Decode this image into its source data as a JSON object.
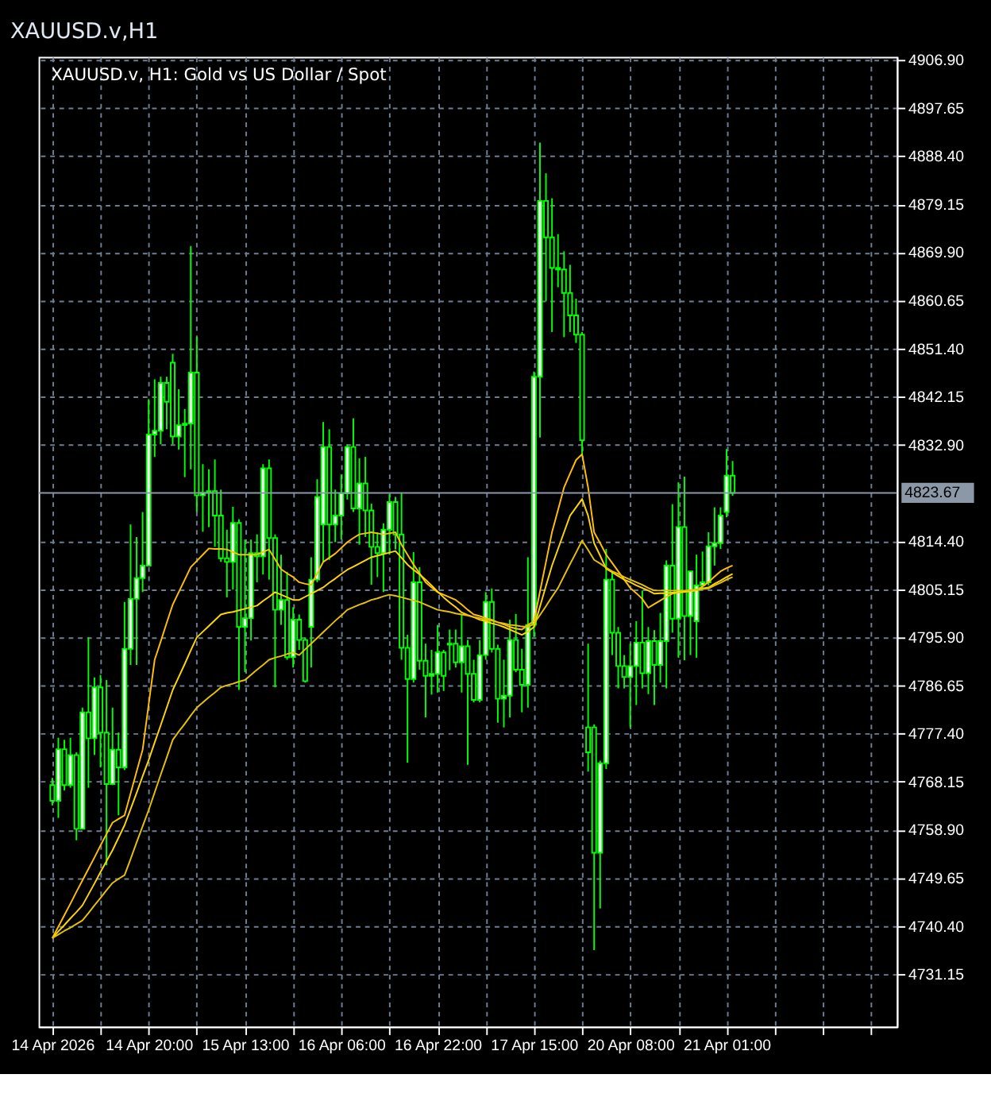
{
  "chart_data": {
    "type": "candlestick",
    "title": "XAUUSD.v,H1",
    "annotations": [
      "XAUUSD.v, H1:  Gold vs US Dollar / Spot"
    ],
    "categories": [
      "14 Apr 2026",
      null,
      null,
      null,
      null,
      null,
      null,
      null,
      null,
      null,
      null,
      null,
      null,
      null,
      null,
      null,
      "14 Apr 20:00",
      null,
      null,
      null,
      null,
      null,
      null,
      null,
      null,
      null,
      null,
      null,
      null,
      null,
      null,
      null,
      "15 Apr 13:00",
      null,
      null,
      null,
      null,
      null,
      null,
      null,
      null,
      null,
      null,
      null,
      null,
      null,
      null,
      null,
      "16 Apr 06:00",
      null,
      null,
      null,
      null,
      null,
      null,
      null,
      null,
      null,
      null,
      null,
      null,
      null,
      null,
      null,
      "16 Apr 22:00",
      null,
      null,
      null,
      null,
      null,
      null,
      null,
      null,
      null,
      null,
      null,
      null,
      null,
      null,
      null,
      "17 Apr 15:00",
      null,
      null,
      null,
      null,
      null,
      null,
      null,
      null,
      null,
      null,
      null,
      null,
      null,
      null,
      null,
      "20 Apr 08:00",
      null,
      null,
      null,
      null,
      null,
      null,
      null,
      null,
      null,
      null,
      null,
      null,
      null,
      null,
      null,
      "21 Apr 01:00",
      null
    ],
    "color": "#00ff00",
    "ohlc": [
      [
        4767.5,
        4768.9,
        4763.6,
        4764.5
      ],
      [
        4764.5,
        4776.6,
        4761.2,
        4774.4
      ],
      [
        4774.4,
        4776.2,
        4766.5,
        4767.5
      ],
      [
        4767.5,
        4776.6,
        4767.0,
        4773.3
      ],
      [
        4773.3,
        4773.8,
        4756.9,
        4759.1
      ],
      [
        4759.1,
        4782.4,
        4759.1,
        4781.5
      ],
      [
        4781.5,
        4795.9,
        4767.0,
        4776.5
      ],
      [
        4776.5,
        4788.2,
        4773.3,
        4786.3
      ],
      [
        4786.3,
        4788.7,
        4770.9,
        4777.6
      ],
      [
        4777.6,
        4787.7,
        4752.1,
        4767.7
      ],
      [
        4767.7,
        4782.4,
        4767.5,
        4774.3
      ],
      [
        4774.3,
        4777.6,
        4761.7,
        4770.9
      ],
      [
        4770.9,
        4802.7,
        4770.4,
        4793.7
      ],
      [
        4793.7,
        4817.6,
        4790.6,
        4803.3
      ],
      [
        4803.3,
        4815.2,
        4790.6,
        4807.3
      ],
      [
        4807.3,
        4820.0,
        4804.6,
        4809.7
      ],
      [
        4809.7,
        4841.7,
        4809.7,
        4834.9
      ],
      [
        4834.9,
        4845.5,
        4830.6,
        4835.6
      ],
      [
        4835.6,
        4846.0,
        4833.0,
        4844.8
      ],
      [
        4844.8,
        4846.0,
        4835.9,
        4841.2
      ],
      [
        4848.7,
        4850.4,
        4833.0,
        4834.5
      ],
      [
        4834.5,
        4843.6,
        4832.0,
        4836.7
      ],
      [
        4836.7,
        4839.8,
        4826.7,
        4837.0
      ],
      [
        4837.0,
        4871.1,
        4828.2,
        4846.8
      ],
      [
        4846.8,
        4853.7,
        4820.0,
        4823.2
      ],
      [
        4823.2,
        4829.2,
        4816.2,
        4823.7
      ],
      [
        4823.7,
        4828.2,
        4817.1,
        4824.0
      ],
      [
        4824.0,
        4830.1,
        4813.3,
        4819.3
      ],
      [
        4819.3,
        4824.3,
        4810.4,
        4811.1
      ],
      [
        4811.1,
        4816.6,
        4803.6,
        4810.4
      ],
      [
        4810.4,
        4821.0,
        4805.1,
        4817.9
      ],
      [
        4817.9,
        4818.6,
        4785.8,
        4797.9
      ],
      [
        4797.9,
        4814.7,
        4789.2,
        4799.6
      ],
      [
        4799.6,
        4814.7,
        4795.3,
        4812.1
      ],
      [
        4812.1,
        4815.7,
        4806.5,
        4811.5
      ],
      [
        4811.5,
        4829.2,
        4808.0,
        4828.4
      ],
      [
        4828.4,
        4830.1,
        4807.0,
        4815.0
      ],
      [
        4815.0,
        4815.7,
        4786.3,
        4801.2
      ],
      [
        4801.2,
        4811.8,
        4798.3,
        4803.1
      ],
      [
        4803.1,
        4808.5,
        4791.6,
        4792.1
      ],
      [
        4792.1,
        4801.7,
        4790.1,
        4799.3
      ],
      [
        4799.3,
        4800.3,
        4793.5,
        4795.4
      ],
      [
        4795.4,
        4795.9,
        4787.2,
        4787.5
      ],
      [
        4797.9,
        4811.3,
        4790.1,
        4807.0
      ],
      [
        4807.0,
        4826.3,
        4806.5,
        4822.9
      ],
      [
        4817.6,
        4837.3,
        4810.4,
        4832.5
      ],
      [
        4832.5,
        4835.9,
        4810.8,
        4817.6
      ],
      [
        4817.6,
        4824.3,
        4814.2,
        4819.3
      ],
      [
        4819.3,
        4827.2,
        4814.7,
        4823.6
      ],
      [
        4823.6,
        4833.0,
        4822.4,
        4832.5
      ],
      [
        4832.5,
        4838.0,
        4820.0,
        4820.7
      ],
      [
        4820.7,
        4830.3,
        4813.7,
        4825.5
      ],
      [
        4825.5,
        4830.6,
        4815.2,
        4820.3
      ],
      [
        4820.3,
        4821.6,
        4806.0,
        4813.3
      ],
      [
        4813.3,
        4816.1,
        4807.5,
        4812.1
      ],
      [
        4812.1,
        4817.8,
        4804.6,
        4816.6
      ],
      [
        4816.6,
        4823.4,
        4811.8,
        4821.9
      ],
      [
        4821.9,
        4822.9,
        4812.8,
        4815.7
      ],
      [
        4815.7,
        4823.6,
        4791.6,
        4793.9
      ],
      [
        4793.9,
        4796.4,
        4771.8,
        4787.9
      ],
      [
        4787.9,
        4812.3,
        4787.2,
        4806.5
      ],
      [
        4806.5,
        4809.4,
        4789.7,
        4791.4
      ],
      [
        4791.4,
        4794.7,
        4780.5,
        4788.5
      ],
      [
        4788.5,
        4793.5,
        4784.9,
        4788.9
      ],
      [
        4788.9,
        4798.3,
        4785.3,
        4793.0
      ],
      [
        4793.0,
        4793.5,
        4785.6,
        4788.5
      ],
      [
        4794.5,
        4797.4,
        4789.6,
        4794.7
      ],
      [
        4794.7,
        4797.4,
        4790.1,
        4791.1
      ],
      [
        4791.1,
        4800.3,
        4785.3,
        4794.2
      ],
      [
        4794.2,
        4795.4,
        4771.4,
        4788.9
      ],
      [
        4788.9,
        4791.6,
        4783.4,
        4783.9
      ],
      [
        4783.9,
        4795.4,
        4783.4,
        4792.5
      ],
      [
        4792.5,
        4804.6,
        4791.6,
        4802.7
      ],
      [
        4802.7,
        4805.3,
        4793.0,
        4793.7
      ],
      [
        4793.7,
        4794.5,
        4779.5,
        4784.1
      ],
      [
        4784.1,
        4791.6,
        4778.6,
        4784.7
      ],
      [
        4784.7,
        4799.3,
        4780.5,
        4795.4
      ],
      [
        4795.4,
        4800.4,
        4789.2,
        4789.7
      ],
      [
        4789.7,
        4793.7,
        4781.5,
        4786.8
      ],
      [
        4786.8,
        4811.3,
        4782.4,
        4798.3
      ],
      [
        4798.3,
        4847.0,
        4796.0,
        4846.0
      ],
      [
        4846.0,
        4891.0,
        4834.3,
        4879.8
      ],
      [
        4879.8,
        4885.1,
        4860.5,
        4872.8
      ],
      [
        4872.8,
        4880.3,
        4854.6,
        4866.9
      ],
      [
        4866.9,
        4873.4,
        4863.2,
        4866.6
      ],
      [
        4866.6,
        4870.1,
        4853.6,
        4862.1
      ],
      [
        4862.1,
        4867.5,
        4854.6,
        4857.8
      ],
      [
        4857.8,
        4861.0,
        4852.5,
        4854.1
      ],
      [
        4854.1,
        4854.6,
        4831.1,
        4833.8
      ],
      [
        4778.6,
        4794.7,
        4770.1,
        4773.8
      ],
      [
        4778.6,
        4779.2,
        4735.8,
        4754.5
      ],
      [
        4754.5,
        4772.2,
        4743.8,
        4771.7
      ],
      [
        4771.7,
        4812.9,
        4770.6,
        4807.0
      ],
      [
        4807.0,
        4808.6,
        4792.5,
        4796.8
      ],
      [
        4796.8,
        4797.9,
        4786.1,
        4790.4
      ],
      [
        4790.4,
        4792.5,
        4786.1,
        4788.3
      ],
      [
        4788.3,
        4794.7,
        4778.6,
        4790.4
      ],
      [
        4790.4,
        4799.0,
        4782.9,
        4794.9
      ],
      [
        4794.9,
        4804.9,
        4786.1,
        4789.0
      ],
      [
        4789.0,
        4797.9,
        4785.0,
        4795.2
      ],
      [
        4795.2,
        4797.3,
        4782.9,
        4790.6
      ],
      [
        4790.6,
        4800.6,
        4787.2,
        4795.2
      ],
      [
        4795.2,
        4810.7,
        4786.1,
        4809.7
      ],
      [
        4809.7,
        4821.5,
        4796.8,
        4799.5
      ],
      [
        4799.5,
        4825.7,
        4792.0,
        4817.1
      ],
      [
        4817.1,
        4826.8,
        4791.5,
        4800.0
      ],
      [
        4800.0,
        4808.6,
        4792.5,
        4808.6
      ],
      [
        4799.0,
        4811.8,
        4792.0,
        4805.9
      ],
      [
        4805.9,
        4812.4,
        4805.4,
        4806.5
      ],
      [
        4806.5,
        4816.1,
        4805.9,
        4813.4
      ],
      [
        4813.4,
        4820.9,
        4809.7,
        4814.0
      ],
      [
        4814.0,
        4820.9,
        4812.9,
        4819.3
      ],
      [
        4820.0,
        4832.1,
        4819.0,
        4827.0
      ],
      [
        4827.0,
        4829.8,
        4823.1,
        4823.67
      ]
    ],
    "series": [
      {
        "type": "line",
        "color": "#ffc000",
        "values": [
          4738.1,
          4740.3,
          4742.5,
          4744.7,
          4747.0,
          4749.2,
          4751.4,
          4753.6,
          4755.9,
          4758.1,
          4760.3,
          4761.0,
          4761.7,
          4765.9,
          4770.1,
          4774.3,
          4783.0,
          4791.6,
          4795.1,
          4798.7,
          4802.2,
          4804.6,
          4807.0,
          4809.4,
          4810.6,
          4811.8,
          4813.0,
          4812.9,
          4812.9,
          4812.8,
          4812.3,
          4811.8,
          4811.8,
          4811.8,
          4811.8,
          4812.3,
          4812.8,
          4810.9,
          4809.0,
          4808.2,
          4807.5,
          4806.5,
          4806.2,
          4806.0,
          4808.2,
          4810.4,
          4811.2,
          4812.0,
          4813.1,
          4814.2,
          4815.0,
          4815.7,
          4815.9,
          4816.1,
          4815.9,
          4815.7,
          4815.9,
          4816.1,
          4813.7,
          4811.8,
          4809.9,
          4808.2,
          4806.5,
          4805.5,
          4804.6,
          4804.1,
          4803.6,
          4803.1,
          4802.2,
          4801.2,
          4800.3,
          4800.0,
          4799.6,
          4799.3,
          4798.8,
          4798.4,
          4797.9,
          4797.6,
          4797.4,
          4798.3,
          4799.0,
          4804.7,
          4810.4,
          4816.1,
          4820.4,
          4824.7,
          4827.4,
          4830.0,
          4831.1,
          4824.7,
          4816.1,
          4814.0,
          4811.8,
          4810.2,
          4808.6,
          4807.0,
          4805.4,
          4804.4,
          4803.3,
          4801.6,
          4802.3,
          4803.0,
          4803.7,
          4804.3,
          4804.5,
          4804.6,
          4804.8,
          4804.9,
          4805.7,
          4806.5,
          4807.6,
          4808.6,
          4809.2,
          4809.7
        ]
      },
      {
        "type": "line",
        "color": "#ffd700",
        "values": [
          4738.1,
          4739.4,
          4740.6,
          4741.9,
          4743.1,
          4744.4,
          4746.5,
          4748.6,
          4750.8,
          4752.9,
          4755.0,
          4757.4,
          4759.8,
          4762.9,
          4766.0,
          4769.2,
          4772.3,
          4775.7,
          4779.0,
          4782.4,
          4785.8,
          4788.3,
          4790.8,
          4793.4,
          4795.9,
          4797.0,
          4798.1,
          4799.2,
          4800.3,
          4800.6,
          4800.8,
          4801.1,
          4801.4,
          4801.7,
          4802.0,
          4802.9,
          4803.7,
          4804.6,
          4804.1,
          4803.6,
          4803.1,
          4803.1,
          4803.7,
          4804.3,
          4804.9,
          4805.5,
          4806.4,
          4807.2,
          4808.1,
          4808.9,
          4809.5,
          4810.1,
          4810.7,
          4811.3,
          4811.6,
          4811.9,
          4812.2,
          4812.5,
          4811.2,
          4809.9,
          4808.9,
          4808.0,
          4807.0,
          4805.9,
          4804.7,
          4803.6,
          4802.6,
          4801.7,
          4800.7,
          4800.2,
          4799.8,
          4799.3,
          4799.0,
          4798.6,
          4798.3,
          4797.9,
          4797.4,
          4796.9,
          4796.4,
          4797.0,
          4797.9,
          4801.8,
          4805.8,
          4809.7,
          4812.9,
          4816.1,
          4819.3,
          4820.9,
          4822.5,
          4819.3,
          4814.0,
          4811.6,
          4809.1,
          4808.4,
          4807.7,
          4807.0,
          4806.5,
          4805.9,
          4805.4,
          4804.9,
          4804.3,
          4804.4,
          4804.4,
          4804.5,
          4804.6,
          4804.7,
          4804.8,
          4805.0,
          4805.3,
          4805.5,
          4806.2,
          4806.8,
          4807.5,
          4808.1
        ]
      },
      {
        "type": "line",
        "color": "#e6c200",
        "values": [
          4738.1,
          4738.8,
          4739.5,
          4740.1,
          4740.8,
          4741.5,
          4742.9,
          4744.4,
          4745.8,
          4747.3,
          4748.7,
          4749.5,
          4750.2,
          4753.3,
          4756.5,
          4759.6,
          4762.7,
          4766.1,
          4769.5,
          4772.8,
          4776.2,
          4777.8,
          4779.3,
          4780.9,
          4782.4,
          4783.4,
          4784.4,
          4785.3,
          4786.3,
          4786.7,
          4787.0,
          4787.4,
          4787.7,
          4788.7,
          4789.7,
          4790.6,
          4791.6,
          4792.0,
          4792.3,
          4792.7,
          4793.0,
          4792.5,
          4793.6,
          4794.7,
          4795.8,
          4796.9,
          4798.0,
          4799.1,
          4800.1,
          4801.2,
          4801.7,
          4802.2,
          4802.6,
          4803.1,
          4803.4,
          4803.8,
          4804.1,
          4803.9,
          4803.6,
          4803.3,
          4803.0,
          4802.7,
          4802.2,
          4801.7,
          4801.2,
          4801.0,
          4800.8,
          4800.5,
          4800.3,
          4800.1,
          4799.8,
          4799.6,
          4799.3,
          4799.1,
          4798.8,
          4798.6,
          4798.3,
          4798.2,
          4798.0,
          4797.9,
          4798.5,
          4800.2,
          4801.9,
          4803.7,
          4805.4,
          4807.7,
          4810.0,
          4812.2,
          4814.5,
          4812.7,
          4810.8,
          4810.1,
          4809.3,
          4808.6,
          4808.1,
          4807.5,
          4807.0,
          4806.5,
          4806.0,
          4805.4,
          4804.9,
          4804.9,
          4804.9,
          4804.9,
          4804.9,
          4804.9,
          4805.0,
          4805.1,
          4805.2,
          4805.3,
          4805.9,
          4806.4,
          4807.0,
          4807.5
        ]
      }
    ],
    "ylim": [
      4721.1,
      4907.5
    ],
    "yticks": [
      4731.15,
      {
        "value": 4740.4,
        "label": "4740.40"
      },
      4749.65,
      {
        "value": 4758.9,
        "label": "4758.90"
      },
      4768.15,
      {
        "value": 4777.4,
        "label": "4777.40"
      },
      4786.65,
      {
        "value": 4795.9,
        "label": "4795.90"
      },
      4805.15,
      {
        "value": 4814.4,
        "label": "4814.40"
      },
      {
        "value": 4832.9,
        "label": "4832.90"
      },
      4842.15,
      {
        "value": 4851.4,
        "label": "4851.40"
      },
      4860.65,
      {
        "value": 4869.9,
        "label": "4869.90"
      },
      4879.15,
      {
        "value": 4888.4,
        "label": "4888.40"
      },
      4897.65,
      {
        "value": 4906.9,
        "label": "4906.90"
      }
    ],
    "ref_lines": [
      {
        "axis": "y",
        "value": 4823.67,
        "label": "4823.67",
        "color": "#8a98a8"
      }
    ],
    "grid": true
  }
}
